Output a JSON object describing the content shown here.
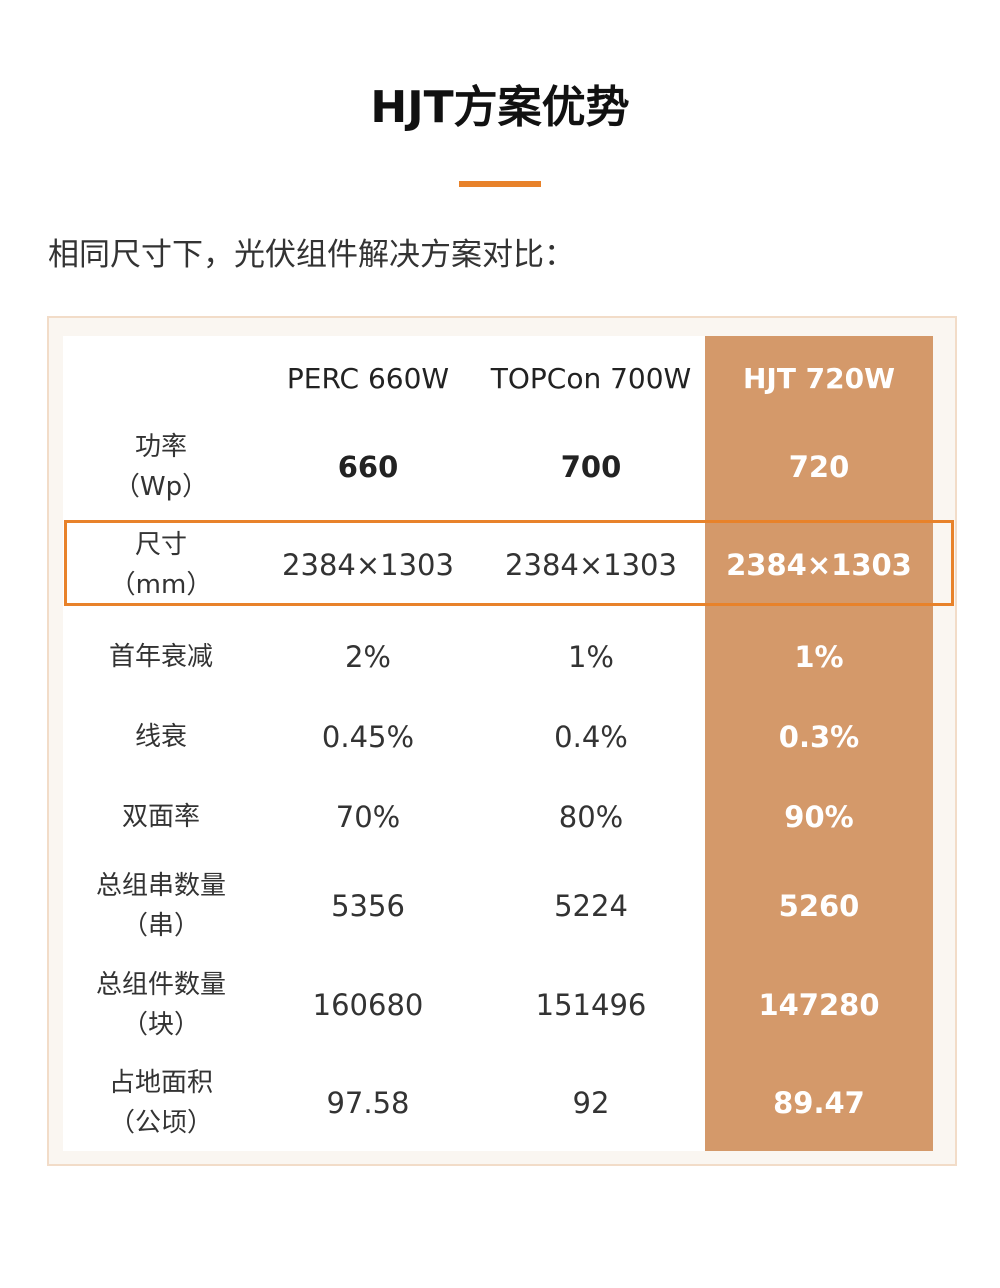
{
  "title": "HJT方案优势",
  "intro": "相同尺寸下，光伏组件解决方案对比：",
  "colors": {
    "accent": "#e8822a",
    "hjt_column": "#d4996a"
  },
  "table": {
    "headers": [
      "",
      "PERC 660W",
      "TOPCon 700W",
      "HJT 720W"
    ],
    "rows": [
      {
        "label": [
          "功率",
          "（Wp）"
        ],
        "values": [
          "660",
          "700",
          "720"
        ]
      },
      {
        "label": [
          "尺寸",
          "（mm）"
        ],
        "values": [
          "2384×1303",
          "2384×1303",
          "2384×1303"
        ]
      },
      {
        "label": [
          "首年衰减"
        ],
        "values": [
          "2%",
          "1%",
          "1%"
        ]
      },
      {
        "label": [
          "线衰"
        ],
        "values": [
          "0.45%",
          "0.4%",
          "0.3%"
        ]
      },
      {
        "label": [
          "双面率"
        ],
        "values": [
          "70%",
          "80%",
          "90%"
        ]
      },
      {
        "label": [
          "总组串数量",
          "（串）"
        ],
        "values": [
          "5356",
          "5224",
          "5260"
        ]
      },
      {
        "label": [
          "总组件数量",
          "（块）"
        ],
        "values": [
          "160680",
          "151496",
          "147280"
        ]
      },
      {
        "label": [
          "占地面积",
          "（公顷）"
        ],
        "values": [
          "97.58",
          "92",
          "89.47"
        ]
      }
    ]
  }
}
